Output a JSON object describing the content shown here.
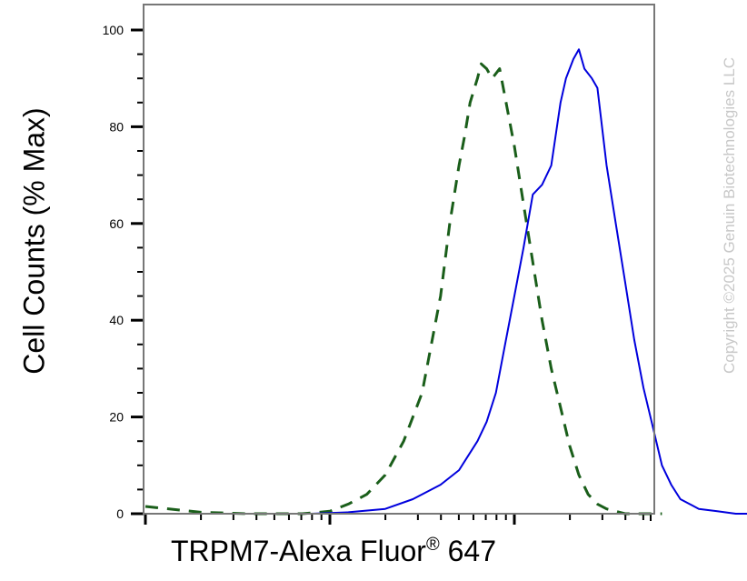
{
  "chart_data": {
    "type": "line",
    "title": "",
    "xlabel": "TRPM7-Alexa Fluor",
    "xlabel_mark": "®",
    "xlabel_suffix": "647",
    "ylabel": "Cell Counts (% Max)",
    "x_scale": "log",
    "x_tick_labels": false,
    "ylim": [
      0,
      105
    ],
    "yticks": [
      0,
      20,
      40,
      60,
      80,
      100
    ],
    "grid": false,
    "series": [
      {
        "style": "dashed",
        "color": "#1a5e1a",
        "x": [
          0.0,
          0.3,
          0.55,
          0.7,
          0.85,
          1.0,
          1.1,
          1.2,
          1.3,
          1.4,
          1.5,
          1.6,
          1.65,
          1.7,
          1.73,
          1.76,
          1.8,
          1.82,
          1.85,
          1.88,
          1.92,
          1.96,
          2.0,
          2.05,
          2.1,
          2.15,
          2.2,
          2.25,
          2.3,
          2.35,
          2.4,
          2.45,
          2.5,
          2.55,
          2.6,
          2.7,
          2.8
        ],
        "y": [
          1.5,
          0.3,
          0.0,
          0.0,
          0.0,
          0.5,
          2,
          4,
          8,
          15,
          25,
          45,
          60,
          72,
          78,
          85,
          90,
          93,
          92,
          90,
          92,
          84,
          76,
          64,
          52,
          40,
          30,
          22,
          14,
          8,
          4,
          2,
          1,
          0.5,
          0.0,
          0.0,
          0.0
        ]
      },
      {
        "style": "solid",
        "color": "#0000dd",
        "x": [
          0.0,
          0.4,
          0.7,
          0.9,
          1.1,
          1.3,
          1.45,
          1.6,
          1.7,
          1.8,
          1.85,
          1.9,
          1.95,
          2.0,
          2.05,
          2.1,
          2.15,
          2.2,
          2.25,
          2.28,
          2.32,
          2.35,
          2.38,
          2.42,
          2.45,
          2.5,
          2.55,
          2.6,
          2.65,
          2.7,
          2.75,
          2.8,
          2.85,
          2.9,
          2.95,
          3.0,
          3.1,
          3.2,
          3.4,
          3.6,
          3.8,
          4.0
        ],
        "y": [
          0.0,
          0.0,
          0.0,
          0.0,
          0.3,
          1,
          3,
          6,
          9,
          15,
          19,
          25,
          35,
          45,
          55,
          66,
          68,
          72,
          85,
          90,
          94,
          96,
          92,
          90,
          88,
          72,
          60,
          48,
          36,
          26,
          18,
          10,
          6,
          3,
          2,
          1,
          0.5,
          0.0,
          0.0,
          0.0,
          0.0,
          0.0
        ]
      }
    ]
  },
  "watermark": "Copyright ©2025 Genuin Biotechnologies LLC"
}
